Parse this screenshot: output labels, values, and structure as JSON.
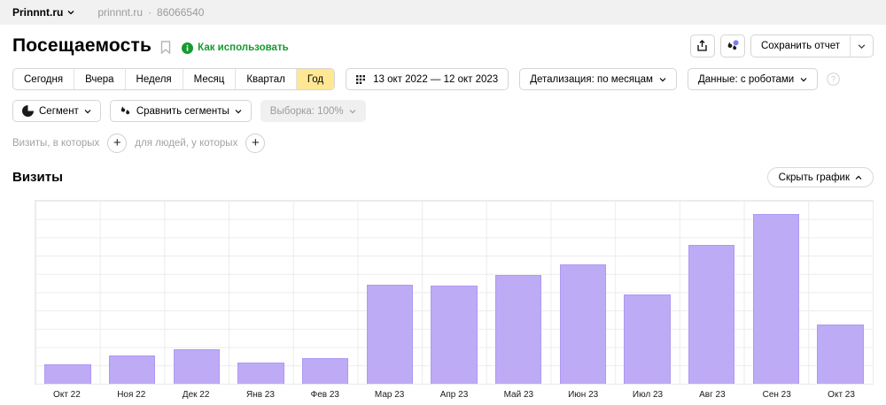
{
  "topbar": {
    "counter_name": "Prinnnt.ru",
    "counter_domain": "prinnnt.ru",
    "separator": "·",
    "counter_id": "86066540"
  },
  "header": {
    "title": "Посещаемость",
    "how_to_use": "Как использовать",
    "save_report": "Сохранить отчет"
  },
  "toolbar": {
    "periods": [
      "Сегодня",
      "Вчера",
      "Неделя",
      "Месяц",
      "Квартал",
      "Год"
    ],
    "active_period": "Год",
    "date_range": "13 окт 2022 — 12 окт 2023",
    "detail": "Детализация: по месяцам",
    "data_mode": "Данные: с роботами"
  },
  "segments": {
    "segment": "Сегмент",
    "compare": "Сравнить сегменты",
    "sample": "Выборка: 100%"
  },
  "filters": {
    "visits_label": "Визиты, в которых",
    "people_label": "для людей, у которых",
    "plus": "+"
  },
  "chart_section": {
    "title": "Визиты",
    "hide_chart": "Скрыть график"
  },
  "colors": {
    "bar_fill": "#beabf6",
    "bar_border": "#ae99f2",
    "active_period_bg": "#ffe794",
    "green_link": "#159b2e",
    "notification_dot": "#7b7ff2",
    "topbar_bg": "#f1f1f1",
    "grid_line": "#ececec"
  },
  "chart_data": {
    "type": "bar",
    "title": "Визиты",
    "xlabel": "",
    "ylabel": "",
    "y_axis_labels": "none visible",
    "grid": true,
    "grid_rows": 10,
    "categories": [
      "Окт 22",
      "Ноя 22",
      "Дек 22",
      "Янв 23",
      "Фев 23",
      "Мар 23",
      "Апр 23",
      "Май 23",
      "Июн 23",
      "Июл 23",
      "Авг 23",
      "Сен 23",
      "Окт 23"
    ],
    "values_pct_of_plot_height": [
      10.8,
      15.6,
      19.0,
      11.8,
      14.2,
      54.0,
      53.7,
      59.2,
      65.0,
      48.7,
      76.0,
      92.8,
      32.4
    ]
  }
}
